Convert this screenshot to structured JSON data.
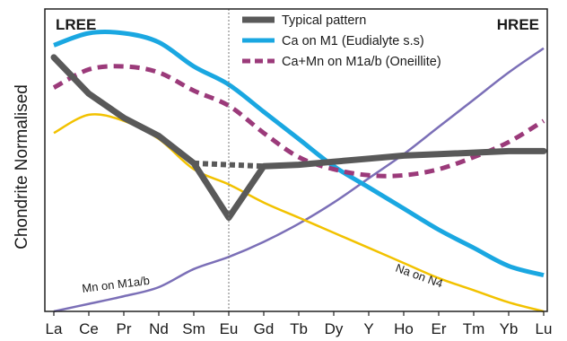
{
  "chart_data": {
    "type": "line",
    "ylabel": "Chondrite Normalised",
    "xlabel": "",
    "categories": [
      "La",
      "Ce",
      "Pr",
      "Nd",
      "Sm",
      "Eu",
      "Gd",
      "Tb",
      "Dy",
      "Y",
      "Ho",
      "Er",
      "Tm",
      "Yb",
      "Lu"
    ],
    "ylim": [
      0,
      100
    ],
    "grid": false,
    "legend": "top-right",
    "region_labels": {
      "left": "LREE",
      "right": "HREE"
    },
    "reference_line": {
      "at": "Eu",
      "style": "dotted"
    },
    "annotations": [
      {
        "text": "Mn on M1a/b",
        "near": "Ce"
      },
      {
        "text": "Na on N4",
        "near": "Er"
      }
    ],
    "colors": {
      "typical": "#595959",
      "ca": "#1aa7e1",
      "camn": "#9b3a7a",
      "na": "#f2c200",
      "mn": "#7b6fb7"
    },
    "series": [
      {
        "key": "typical",
        "name": "Typical pattern",
        "legend": true,
        "style": "solid",
        "values": [
          84,
          72,
          64,
          58,
          49,
          31,
          48,
          48.5,
          49.5,
          50.5,
          51.5,
          52,
          52.5,
          53,
          53
        ]
      },
      {
        "key": "typical_gap",
        "name": "",
        "legend": false,
        "style": "dotted",
        "values": [
          null,
          null,
          null,
          null,
          49,
          48.5,
          48,
          null,
          null,
          null,
          null,
          null,
          null,
          null,
          null
        ]
      },
      {
        "key": "ca",
        "name": "Ca on M1 (Eudialyte s.s)",
        "legend": true,
        "style": "solid",
        "values": [
          88,
          92,
          92,
          89,
          81,
          75,
          66,
          57,
          48,
          41,
          34,
          27,
          21,
          15,
          12
        ]
      },
      {
        "key": "camn",
        "name": "Ca+Mn on M1a/b (Oneillite)",
        "legend": true,
        "style": "dashed",
        "values": [
          74,
          80,
          81,
          79,
          73,
          68,
          59,
          51,
          47,
          45,
          45,
          47,
          51,
          56,
          63
        ]
      },
      {
        "key": "na",
        "name": "",
        "legend": false,
        "style": "solid",
        "values": [
          59,
          65,
          63,
          57,
          47,
          42,
          36,
          31,
          26,
          21,
          16,
          11,
          7,
          3,
          0
        ]
      },
      {
        "key": "mn",
        "name": "",
        "legend": false,
        "style": "solid",
        "values": [
          0,
          2.5,
          5,
          8,
          14,
          18,
          23,
          29,
          36,
          44,
          52,
          61,
          70,
          79,
          87
        ]
      }
    ]
  }
}
